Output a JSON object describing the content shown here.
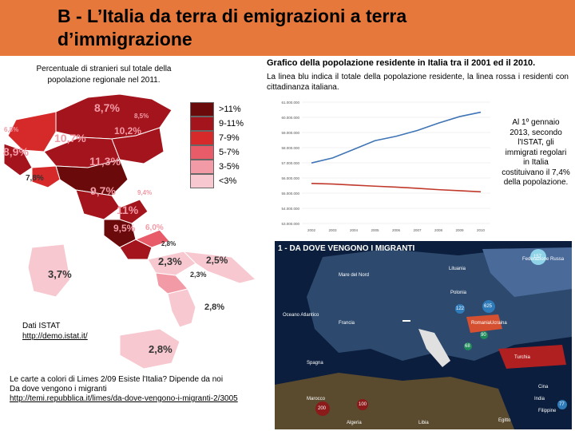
{
  "title": "B - L’Italia da terra di emigrazioni a terra d’immigrazione",
  "map": {
    "caption": "Percentuale di stranieri sul totale della popolazione regionale nel 2011.",
    "legend": [
      {
        "label": ">11%",
        "color": "#6b0a0a"
      },
      {
        "label": "9-11%",
        "color": "#a3141c"
      },
      {
        "label": "7-9%",
        "color": "#d62a2a"
      },
      {
        "label": "5-7%",
        "color": "#e75c68"
      },
      {
        "label": "3-5%",
        "color": "#f29aa6"
      },
      {
        "label": "<3%",
        "color": "#f7c8cf"
      }
    ],
    "regions": {
      "r1": "8,7%",
      "r2": "8,5%",
      "r3": "6,8%",
      "r4": "10,7%",
      "r5": "10,2%",
      "r6": "8,9%",
      "r7": "11,3%",
      "r8": "7,8%",
      "r9": "9,7%",
      "r10": "9,4%",
      "r11": "11%",
      "r12": "9,5%",
      "r13": "6,0%",
      "r14": "2,8%",
      "r15": "2,3%",
      "r16": "2,5%",
      "r17": "2,3%",
      "r18": "3,7%",
      "r19": "2,8%",
      "r20": "2,8%"
    }
  },
  "source": {
    "label": "Dati ISTAT",
    "link": "http://demo.istat.it/"
  },
  "notes": {
    "line1": "Le carte a colori di Limes 2/09 Esiste l'Italia? Dipende da noi",
    "line2": "Da dove vengono i migranti",
    "link": "http://temi.repubblica.it/limes/da-dove-vengono-i-migranti-2/3005"
  },
  "chart": {
    "title": "Grafico della popolazione residente in Italia tra il 2001 ed il 2010.",
    "description": "La linea blu indica il totale della popolazione residente, la linea rossa i residenti con cittadinanza italiana."
  },
  "chart_data": {
    "type": "line",
    "x": [
      "2002",
      "2003",
      "2004",
      "2005",
      "2006",
      "2007",
      "2008",
      "2009",
      "2010"
    ],
    "yticks": [
      "61.000.000",
      "60.000.000",
      "59.000.000",
      "58.000.000",
      "57.000.000",
      "56.000.000",
      "55.000.000",
      "54.000.000",
      "53.000.000"
    ],
    "ylim": [
      53000000,
      61000000
    ],
    "series": [
      {
        "values": [
          56990000,
          57320000,
          57890000,
          58460000,
          58750000,
          59130000,
          59620000,
          60050000,
          60340000
        ],
        "color": "#3f74b5"
      },
      {
        "values": [
          55640000,
          55600000,
          55530000,
          55460000,
          55400000,
          55320000,
          55230000,
          55160000,
          55090000
        ],
        "color": "#c0392b"
      }
    ]
  },
  "side_text": "Al 1º gennaio 2013, secondo l'ISTAT, gli immigrati regolari in Italia costituivano il 7,4% della popolazione.",
  "poster": {
    "title": "1 - DA DOVE VENGONO I MIGRANTI",
    "labels": {
      "mare_nord": "Mare del Nord",
      "federazione": "Federazione Russa",
      "lituania": "Lituania",
      "polonia": "Polonia",
      "ucraina": "Ucraina",
      "francia": "Francia",
      "romania": "Romania",
      "spagna": "Spagna",
      "oceano": "Oceano Atlantico",
      "turchia": "Turchia",
      "libia": "Libia",
      "marocco": "Marocco",
      "egitto": "Egitto",
      "algeria": "Algeria",
      "cina": "Cina",
      "india": "India",
      "filippine": "Filippine"
    },
    "bubbles": [
      "157",
      "625",
      "122",
      "90",
      "68",
      "200",
      "100",
      "77"
    ]
  }
}
